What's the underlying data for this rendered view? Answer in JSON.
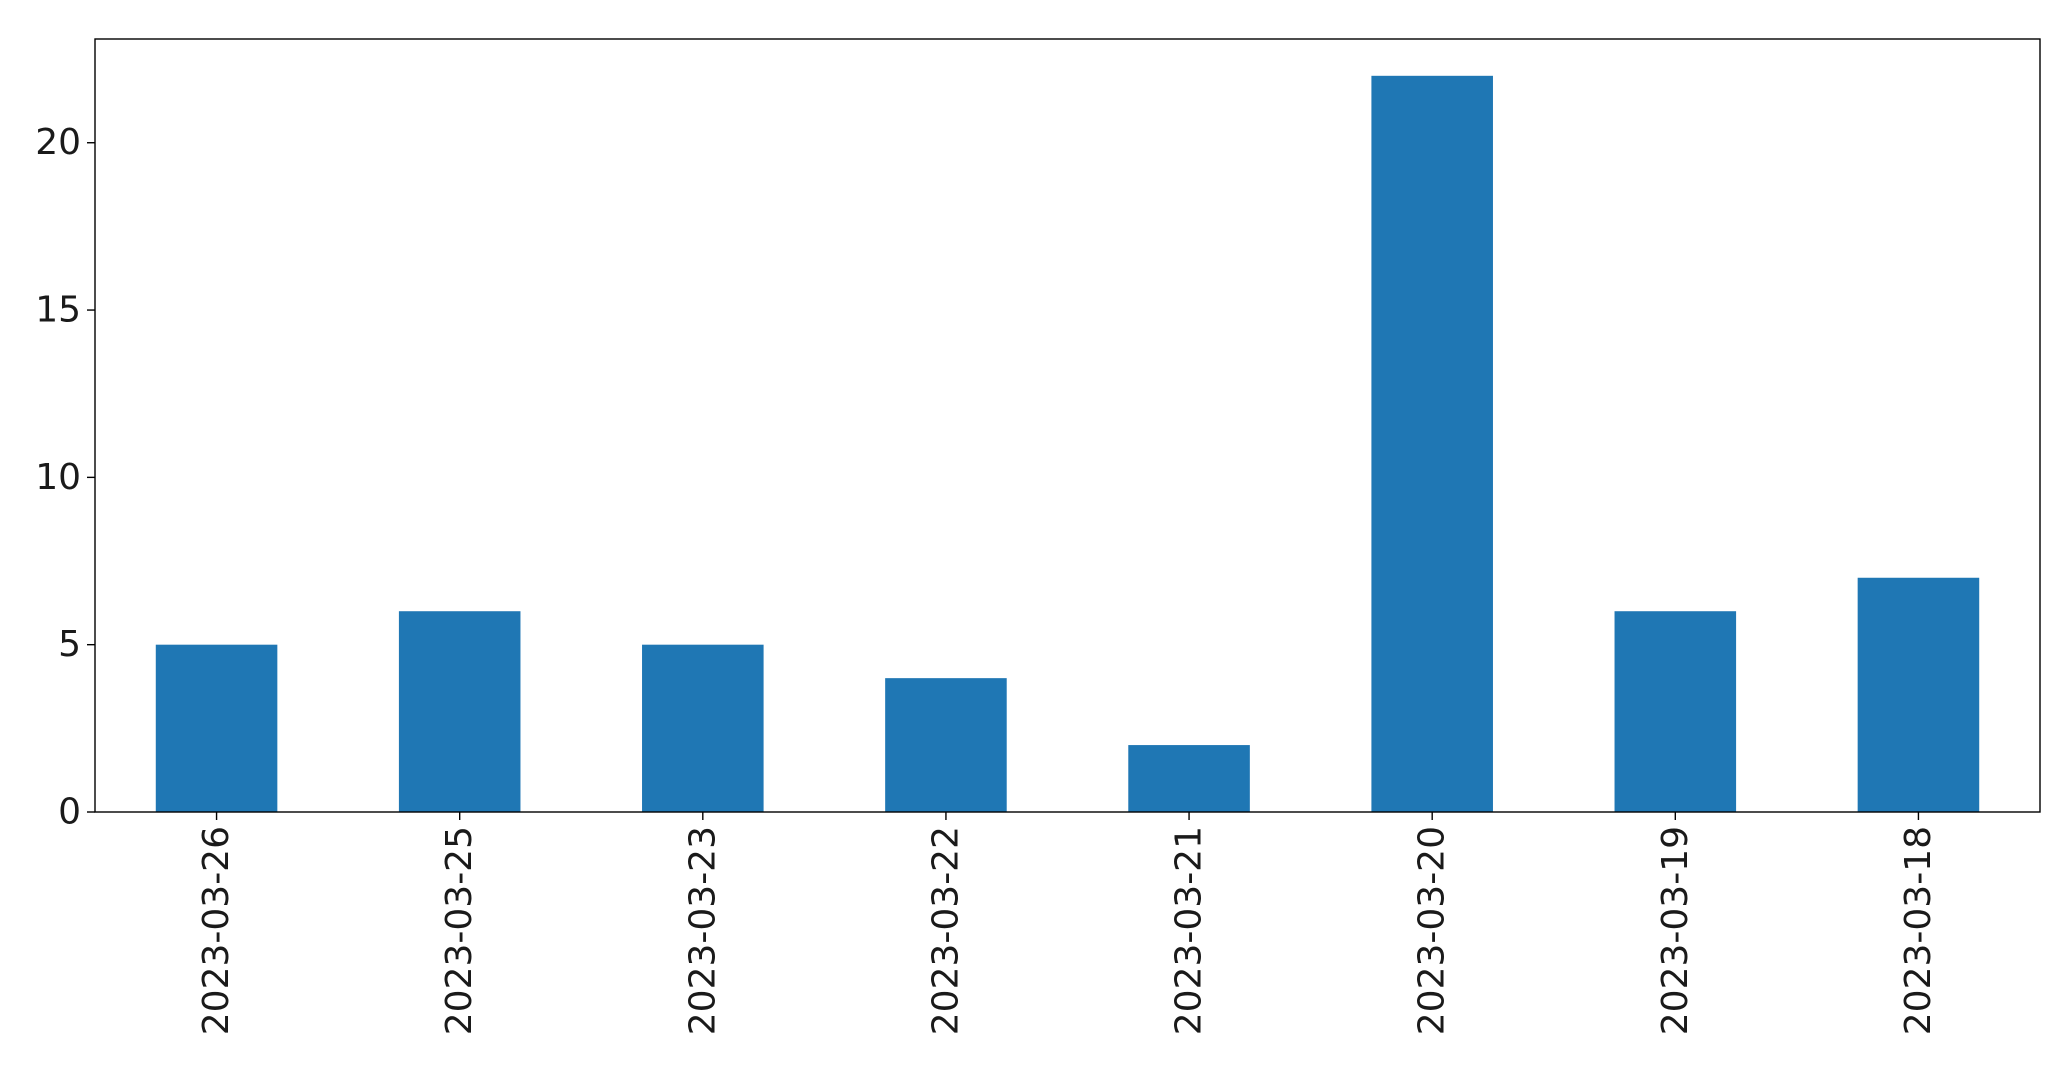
{
  "chart_data": {
    "type": "bar",
    "title": "",
    "xlabel": "",
    "ylabel": "",
    "categories": [
      "2023-03-26",
      "2023-03-25",
      "2023-03-23",
      "2023-03-22",
      "2023-03-21",
      "2023-03-20",
      "2023-03-19",
      "2023-03-18"
    ],
    "values": [
      5,
      6,
      5,
      4,
      2,
      22,
      6,
      7
    ],
    "ylim": [
      0,
      23.1
    ],
    "yticks": [
      0,
      5,
      10,
      15,
      20
    ],
    "grid": false,
    "legend": "none",
    "bar_color": "#1f77b4",
    "axis_color": "#000000"
  }
}
